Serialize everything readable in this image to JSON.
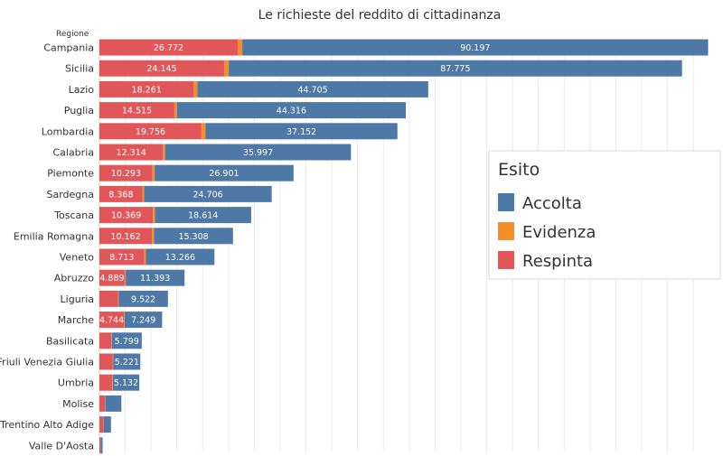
{
  "chart_data": {
    "type": "bar",
    "orientation": "horizontal",
    "stacked": true,
    "title": "Le richieste del reddito di cittadinanza",
    "ylabel": "Regione",
    "categories": [
      "Campania",
      "Sicilia",
      "Lazio",
      "Puglia",
      "Lombardia",
      "Calabria",
      "Piemonte",
      "Sardegna",
      "Toscana",
      "Emilia Romagna",
      "Veneto",
      "Abruzzo",
      "Liguria",
      "Marche",
      "Basilicata",
      "Friuli Venezia Giulia",
      "Umbria",
      "Molise",
      "Trentino Alto Adige",
      "Valle D'Aosta"
    ],
    "series": [
      {
        "name": "Respinta",
        "color": "#e15759",
        "values": [
          26772,
          24145,
          18261,
          14515,
          19756,
          12314,
          10293,
          8368,
          10369,
          10162,
          8713,
          4889,
          3600,
          4744,
          2300,
          2600,
          2500,
          1100,
          800,
          200
        ],
        "value_labels": [
          "26.772",
          "24.145",
          "18.261",
          "14.515",
          "19.756",
          "12.314",
          "10.293",
          "8.368",
          "10.369",
          "10.162",
          "8.713",
          "4.889",
          "",
          "4.744",
          "",
          "",
          "",
          "",
          "",
          ""
        ]
      },
      {
        "name": "Evidenza",
        "color": "#f28e2b",
        "values": [
          900,
          900,
          700,
          500,
          800,
          400,
          400,
          300,
          400,
          400,
          300,
          200,
          150,
          150,
          100,
          100,
          100,
          50,
          40,
          20
        ],
        "value_labels": [
          "",
          "",
          "",
          "",
          "",
          "",
          "",
          "",
          "",
          "",
          "",
          "",
          "",
          "",
          "",
          "",
          "",
          "",
          "",
          ""
        ]
      },
      {
        "name": "Accolta",
        "color": "#4e79a7",
        "values": [
          90197,
          87775,
          44705,
          44316,
          37152,
          35997,
          26901,
          24706,
          18614,
          15308,
          13266,
          11393,
          9522,
          7249,
          5799,
          5221,
          5132,
          3100,
          1400,
          400
        ],
        "value_labels": [
          "90.197",
          "87.775",
          "44.705",
          "44.316",
          "37.152",
          "35.997",
          "26.901",
          "24.706",
          "18.614",
          "15.308",
          "13.266",
          "11.393",
          "9.522",
          "7.249",
          "5.799",
          "5.221",
          "5.132",
          "",
          "",
          ""
        ]
      }
    ],
    "xlim": [
      0,
      119000
    ],
    "grid": true,
    "legend": {
      "title": "Esito",
      "position": "right",
      "items": [
        {
          "name": "Accolta",
          "color": "#4e79a7"
        },
        {
          "name": "Evidenza",
          "color": "#f28e2b"
        },
        {
          "name": "Respinta",
          "color": "#e15759"
        }
      ]
    }
  }
}
